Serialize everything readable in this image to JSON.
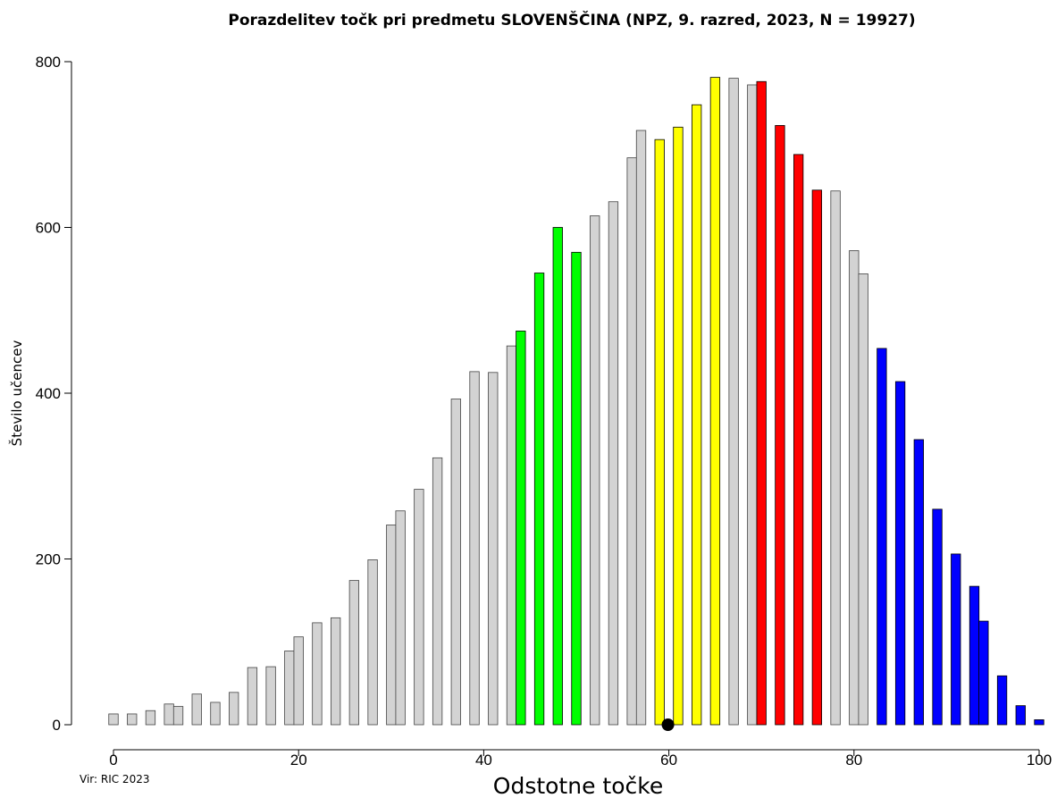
{
  "chart_data": {
    "type": "bar",
    "title": "Porazdelitev točk pri predmetu SLOVENŠČINA (NPZ, 9. razred, 2023, N = 19927)",
    "xlabel": "Odstotne točke",
    "ylabel": "Število učencev",
    "source": "Vir: RIC 2023",
    "xlim": [
      0,
      100
    ],
    "ylim": [
      0,
      800
    ],
    "xticks": [
      0,
      20,
      40,
      60,
      80,
      100
    ],
    "yticks": [
      0,
      200,
      400,
      600,
      800
    ],
    "grid": false,
    "mean_marker": {
      "x": 59.9,
      "y": 0
    },
    "colors": {
      "grey": "#d3d3d3",
      "green": "#00ff00",
      "yellow": "#ffff00",
      "red": "#ff0000",
      "blue": "#0000ff"
    },
    "bars": [
      {
        "x": 0.0,
        "y": 13,
        "color": "grey"
      },
      {
        "x": 2.0,
        "y": 13,
        "color": "grey"
      },
      {
        "x": 4.0,
        "y": 17,
        "color": "grey"
      },
      {
        "x": 6.0,
        "y": 25,
        "color": "grey"
      },
      {
        "x": 7.0,
        "y": 22,
        "color": "grey"
      },
      {
        "x": 9.0,
        "y": 37,
        "color": "grey"
      },
      {
        "x": 11.0,
        "y": 27,
        "color": "grey"
      },
      {
        "x": 13.0,
        "y": 39,
        "color": "grey"
      },
      {
        "x": 15.0,
        "y": 69,
        "color": "grey"
      },
      {
        "x": 17.0,
        "y": 70,
        "color": "grey"
      },
      {
        "x": 19.0,
        "y": 89,
        "color": "grey"
      },
      {
        "x": 20.0,
        "y": 106,
        "color": "grey"
      },
      {
        "x": 22.0,
        "y": 123,
        "color": "grey"
      },
      {
        "x": 24.0,
        "y": 129,
        "color": "grey"
      },
      {
        "x": 26.0,
        "y": 174,
        "color": "grey"
      },
      {
        "x": 28.0,
        "y": 199,
        "color": "grey"
      },
      {
        "x": 30.0,
        "y": 241,
        "color": "grey"
      },
      {
        "x": 31.0,
        "y": 258,
        "color": "grey"
      },
      {
        "x": 33.0,
        "y": 284,
        "color": "grey"
      },
      {
        "x": 35.0,
        "y": 322,
        "color": "grey"
      },
      {
        "x": 37.0,
        "y": 393,
        "color": "grey"
      },
      {
        "x": 39.0,
        "y": 426,
        "color": "grey"
      },
      {
        "x": 41.0,
        "y": 425,
        "color": "grey"
      },
      {
        "x": 43.0,
        "y": 457,
        "color": "grey"
      },
      {
        "x": 44.0,
        "y": 475,
        "color": "green"
      },
      {
        "x": 46.0,
        "y": 545,
        "color": "green"
      },
      {
        "x": 48.0,
        "y": 600,
        "color": "green"
      },
      {
        "x": 50.0,
        "y": 570,
        "color": "green"
      },
      {
        "x": 52.0,
        "y": 614,
        "color": "grey"
      },
      {
        "x": 54.0,
        "y": 631,
        "color": "grey"
      },
      {
        "x": 56.0,
        "y": 684,
        "color": "grey"
      },
      {
        "x": 57.0,
        "y": 717,
        "color": "grey"
      },
      {
        "x": 59.0,
        "y": 706,
        "color": "yellow"
      },
      {
        "x": 61.0,
        "y": 721,
        "color": "yellow"
      },
      {
        "x": 63.0,
        "y": 748,
        "color": "yellow"
      },
      {
        "x": 65.0,
        "y": 781,
        "color": "yellow"
      },
      {
        "x": 67.0,
        "y": 780,
        "color": "grey"
      },
      {
        "x": 69.0,
        "y": 772,
        "color": "grey"
      },
      {
        "x": 70.0,
        "y": 776,
        "color": "red"
      },
      {
        "x": 72.0,
        "y": 723,
        "color": "red"
      },
      {
        "x": 74.0,
        "y": 688,
        "color": "red"
      },
      {
        "x": 76.0,
        "y": 645,
        "color": "red"
      },
      {
        "x": 78.0,
        "y": 644,
        "color": "grey"
      },
      {
        "x": 80.0,
        "y": 572,
        "color": "grey"
      },
      {
        "x": 81.0,
        "y": 544,
        "color": "grey"
      },
      {
        "x": 83.0,
        "y": 454,
        "color": "blue"
      },
      {
        "x": 85.0,
        "y": 414,
        "color": "blue"
      },
      {
        "x": 87.0,
        "y": 344,
        "color": "blue"
      },
      {
        "x": 89.0,
        "y": 260,
        "color": "blue"
      },
      {
        "x": 91.0,
        "y": 206,
        "color": "blue"
      },
      {
        "x": 93.0,
        "y": 167,
        "color": "blue"
      },
      {
        "x": 94.0,
        "y": 125,
        "color": "blue"
      },
      {
        "x": 96.0,
        "y": 59,
        "color": "blue"
      },
      {
        "x": 98.0,
        "y": 23,
        "color": "blue"
      },
      {
        "x": 100.0,
        "y": 6,
        "color": "blue"
      }
    ]
  }
}
